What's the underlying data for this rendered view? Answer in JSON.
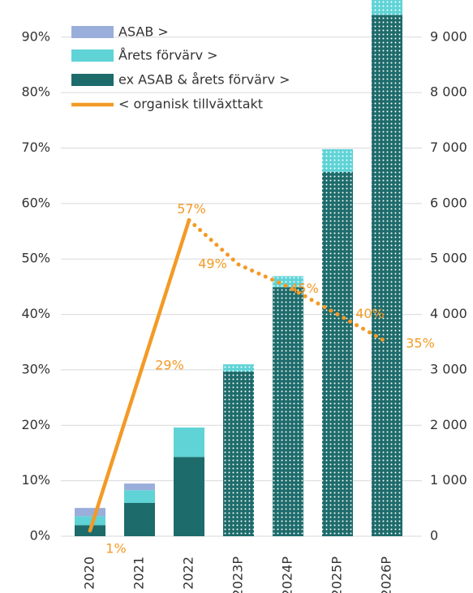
{
  "chart_data": {
    "type": "bar",
    "categories": [
      "2020",
      "2021",
      "2022",
      "2023P",
      "2024P",
      "2025P",
      "2026P"
    ],
    "dotted": [
      false,
      false,
      false,
      true,
      true,
      true,
      true
    ],
    "series": [
      {
        "name": "ex ASAB & årets förvärv >",
        "color": "#1e6b6b",
        "axis": "y2",
        "values": [
          200,
          600,
          1430,
          2970,
          4490,
          6570,
          9400
        ]
      },
      {
        "name": "Årets förvärv >",
        "color": "#5fd3d6",
        "axis": "y2",
        "values": [
          160,
          230,
          530,
          130,
          200,
          410,
          300
        ]
      },
      {
        "name": "ASAB >",
        "color": "#9aaedb",
        "axis": "y2",
        "values": [
          150,
          120,
          0,
          0,
          0,
          0,
          0
        ]
      },
      {
        "name": "< organisk tillväxttakt",
        "color": "#f39a26",
        "type": "line",
        "values": [
          1,
          29,
          57,
          49,
          45,
          40,
          35
        ],
        "value_labels": [
          "1%",
          "29%",
          "57%",
          "49%",
          "45%",
          "40%",
          "35%"
        ]
      }
    ],
    "ylim": [
      0,
      96.7
    ],
    "yticks": [
      {
        "value": 0,
        "label": "0%"
      },
      {
        "value": 10,
        "label": "10%"
      },
      {
        "value": 20,
        "label": "20%"
      },
      {
        "value": 30,
        "label": "30%"
      },
      {
        "value": 40,
        "label": "40%"
      },
      {
        "value": 50,
        "label": "50%"
      },
      {
        "value": 60,
        "label": "60%"
      },
      {
        "value": 70,
        "label": "70%"
      },
      {
        "value": 80,
        "label": "80%"
      },
      {
        "value": 90,
        "label": "90%"
      }
    ],
    "y2lim": [
      0,
      9670
    ],
    "y2ticks": [
      0,
      {
        "value": 1000,
        "label": "1 000"
      },
      {
        "value": 2000,
        "label": "2 000"
      },
      {
        "value": 3000,
        "label": "3 000"
      },
      {
        "value": 4000,
        "label": "4 000"
      },
      {
        "value": 5000,
        "label": "5 000"
      },
      {
        "value": 6000,
        "label": "6 000"
      },
      {
        "value": 7000,
        "label": "7 000"
      },
      {
        "value": 8000,
        "label": "8 000"
      },
      {
        "value": 9000,
        "label": "9 000"
      }
    ],
    "grid": true,
    "legend": "top-left"
  }
}
